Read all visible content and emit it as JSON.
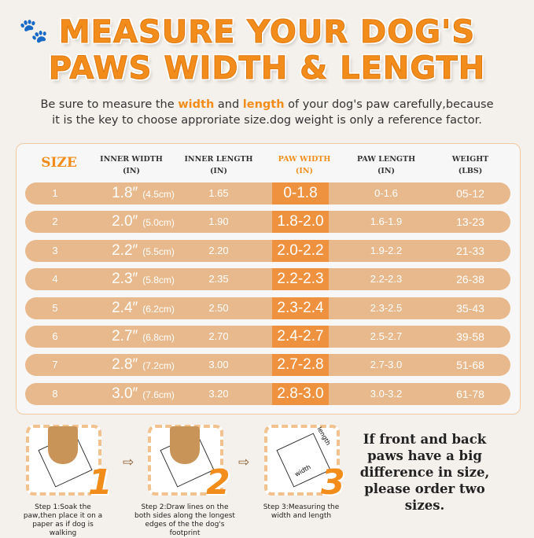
{
  "title": {
    "line1": "MEASURE YOUR DOG'S",
    "line2": "PAWS WIDTH & LENGTH"
  },
  "subtitle": {
    "p1": "Be sure to measure the ",
    "w": "width",
    "p2": " and ",
    "l": "length",
    "p3": " of your dog's paw carefully,because",
    "line2": "it is the key to choose approriate size.dog weight is only a reference factor."
  },
  "table": {
    "headers": {
      "size": "SIZE",
      "inner_width": [
        "INNER WIDTH",
        "(IN)"
      ],
      "inner_length": [
        "INNER LENGTH",
        "(IN)"
      ],
      "paw_width": [
        "PAW WIDTH",
        "(IN)"
      ],
      "paw_length": [
        "PAW LENGTH",
        "(IN)"
      ],
      "weight": [
        "WEIGHT",
        "(LBS)"
      ]
    },
    "rows": [
      {
        "size": "1",
        "iw": "1.8″",
        "cm": "(4.5cm)",
        "il": "1.65",
        "pw": "0-1.8",
        "pl": "0-1.6",
        "wt": "05-12"
      },
      {
        "size": "2",
        "iw": "2.0″",
        "cm": "(5.0cm)",
        "il": "1.90",
        "pw": "1.8-2.0",
        "pl": "1.6-1.9",
        "wt": "13-23"
      },
      {
        "size": "3",
        "iw": "2.2″",
        "cm": "(5.5cm)",
        "il": "2.20",
        "pw": "2.0-2.2",
        "pl": "1.9-2.2",
        "wt": "21-33"
      },
      {
        "size": "4",
        "iw": "2.3″",
        "cm": "(5.8cm)",
        "il": "2.35",
        "pw": "2.2-2.3",
        "pl": "2.2-2.3",
        "wt": "26-38"
      },
      {
        "size": "5",
        "iw": "2.4″",
        "cm": "(6.2cm)",
        "il": "2.50",
        "pw": "2.3-2.4",
        "pl": "2.3-2.5",
        "wt": "35-43"
      },
      {
        "size": "6",
        "iw": "2.7″",
        "cm": "(6.8cm)",
        "il": "2.70",
        "pw": "2.4-2.7",
        "pl": "2.5-2.7",
        "wt": "39-58"
      },
      {
        "size": "7",
        "iw": "2.8″",
        "cm": "(7.2cm)",
        "il": "3.00",
        "pw": "2.7-2.8",
        "pl": "2.7-3.0",
        "wt": "51-68"
      },
      {
        "size": "8",
        "iw": "3.0″",
        "cm": "(7.6cm)",
        "il": "3.20",
        "pw": "2.8-3.0",
        "pl": "3.0-3.2",
        "wt": "61-78"
      }
    ]
  },
  "steps": [
    {
      "num": "1",
      "caption": "Step 1:Soak the paw,then place it on a  paper as if dog is walking"
    },
    {
      "num": "2",
      "caption": "Step 2:Draw lines on the both sides along the longest edges of the the dog's footprint"
    },
    {
      "num": "3",
      "caption": "Step 3:Measuring the width and length",
      "labels": [
        "length",
        "width"
      ]
    }
  ],
  "note": "If front and back paws have a big difference in size, please order two sizes.",
  "colors": {
    "accent": "#f28d1c",
    "row": "#e8b98c",
    "highlight": "#ef9240"
  }
}
